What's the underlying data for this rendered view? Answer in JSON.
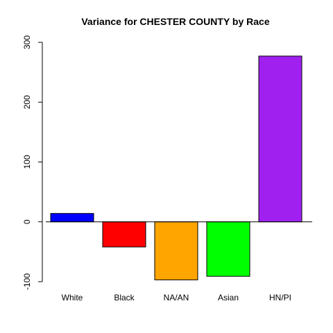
{
  "chart_data": {
    "type": "bar",
    "title": "Variance for CHESTER COUNTY by Race",
    "xlabel": "",
    "ylabel": "",
    "categories": [
      "White",
      "Black",
      "NA/AN",
      "Asian",
      "HN/PI"
    ],
    "values": [
      14,
      -42,
      -97,
      -91,
      277
    ],
    "colors": [
      "#0000ff",
      "#ff0000",
      "#ffa500",
      "#00ff00",
      "#a020f0"
    ],
    "ylim": [
      -100,
      300
    ],
    "yticks": [
      -100,
      0,
      100,
      200,
      300
    ],
    "baseline": 0,
    "grid": false,
    "legend": "none"
  }
}
